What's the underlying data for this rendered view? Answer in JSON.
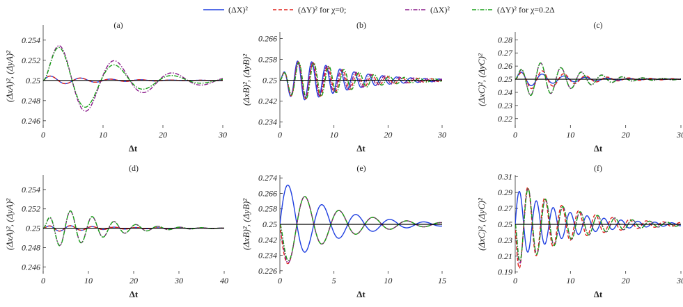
{
  "legend": {
    "items": [
      {
        "label": "(ΔX)²",
        "color": "#1f3fe0",
        "dash": "solid"
      },
      {
        "label": "(ΔY)²  for  χ=0;",
        "color": "#e0201a",
        "dash": "dash"
      },
      {
        "label": "(ΔX)²",
        "color": "#8a1a8a",
        "dash": "dashdot"
      },
      {
        "label": "(ΔY)²  for  χ=0.2Δ",
        "color": "#19a019",
        "dash": "dashdot"
      }
    ]
  },
  "chart_data": [
    {
      "panel": "(a)",
      "type": "line",
      "xlabel": "Δt",
      "ylabel": "(ΔxA)², (ΔyA)²",
      "xlim": [
        0,
        30
      ],
      "ylim": [
        0.2453,
        0.2555
      ],
      "xticks": [
        0,
        10,
        20,
        30
      ],
      "yticks": [
        0.246,
        0.248,
        0.25,
        0.252,
        0.254
      ],
      "yticklabels": [
        "0.246",
        "0.248",
        "0.25",
        "0.252",
        "0.254"
      ],
      "series": [
        {
          "key": "X0",
          "amp": 0.0005,
          "omega": 1.25,
          "decay": 0.12,
          "delay": 0.2
        },
        {
          "key": "Y0",
          "amp": 0.0005,
          "omega": 1.25,
          "decay": 0.12,
          "delay": 0.2
        },
        {
          "key": "X2",
          "amp": 0.0065,
          "omega": 0.65,
          "decay": 0.1,
          "delay": 2.2
        },
        {
          "key": "Y2",
          "amp": 0.0065,
          "omega": 0.65,
          "decay": 0.12,
          "delay": 2.2
        }
      ]
    },
    {
      "panel": "(b)",
      "type": "line",
      "xlabel": "Δt",
      "ylabel": "(ΔxB)², (ΔyB)²",
      "xlim": [
        0,
        30
      ],
      "ylim": [
        0.2318,
        0.2685
      ],
      "xticks": [
        0,
        10,
        20,
        30
      ],
      "yticks": [
        0.234,
        0.242,
        0.25,
        0.258,
        0.266
      ],
      "yticklabels": [
        "0.234",
        "0.242",
        "0.25",
        "0.258",
        "0.266"
      ],
      "series": [
        {
          "key": "X0",
          "amp": 0.017,
          "omega": 2.4,
          "decay": 0.12,
          "delay": 3.2
        },
        {
          "key": "Y0",
          "amp": 0.017,
          "omega": 2.3,
          "decay": 0.12,
          "delay": 3.5
        },
        {
          "key": "X2",
          "amp": 0.017,
          "omega": 2.35,
          "decay": 0.12,
          "delay": 3.8
        },
        {
          "key": "Y2",
          "amp": 0.018,
          "omega": 2.25,
          "decay": 0.12,
          "delay": 4.1
        }
      ]
    },
    {
      "panel": "(c)",
      "type": "line",
      "xlabel": "Δt",
      "ylabel": "(ΔxC)², (ΔyC)²",
      "xlim": [
        0,
        30
      ],
      "ylim": [
        0.213,
        0.286
      ],
      "xticks": [
        0,
        10,
        20,
        30
      ],
      "yticks": [
        0.22,
        0.23,
        0.24,
        0.25,
        0.26,
        0.27,
        0.28
      ],
      "yticklabels": [
        "0.22",
        "0.23",
        "0.24",
        "0.25",
        "0.26",
        "0.27",
        "0.28"
      ],
      "series": [
        {
          "key": "X0",
          "amp": 0.007,
          "omega": 1.6,
          "decay": 0.12,
          "delay": 0.5
        },
        {
          "key": "Y0",
          "amp": 0.012,
          "omega": 1.6,
          "decay": 0.12,
          "delay": 1.6
        },
        {
          "key": "X2",
          "amp": 0.035,
          "omega": 1.7,
          "decay": 0.15,
          "delay": 3.8
        },
        {
          "key": "Y2",
          "amp": 0.033,
          "omega": 1.7,
          "decay": 0.15,
          "delay": 3.3
        }
      ]
    },
    {
      "panel": "(d)",
      "type": "line",
      "xlabel": "Δt",
      "ylabel": "(ΔxA)², (ΔyA)²",
      "xlim": [
        0,
        40
      ],
      "ylim": [
        0.2453,
        0.2555
      ],
      "xticks": [
        0,
        10,
        20,
        30,
        40
      ],
      "yticks": [
        0.246,
        0.248,
        0.25,
        0.252,
        0.254
      ],
      "yticklabels": [
        "0.246",
        "0.248",
        "0.25",
        "0.252",
        "0.254"
      ],
      "series": [
        {
          "key": "X0",
          "amp": 0.00045,
          "omega": 1.3,
          "decay": 0.09,
          "delay": 1.5
        },
        {
          "key": "Y0",
          "amp": 0.00045,
          "omega": 1.3,
          "decay": 0.09,
          "delay": 1.5
        },
        {
          "key": "X2",
          "amp": 0.0055,
          "omega": 1.3,
          "decay": 0.13,
          "delay": 5.0
        },
        {
          "key": "Y2",
          "amp": 0.0055,
          "omega": 1.3,
          "decay": 0.13,
          "delay": 4.8
        }
      ]
    },
    {
      "panel": "(e)",
      "type": "line",
      "xlabel": "Δt",
      "ylabel": "(ΔxB)², (ΔyB)²",
      "xlim": [
        0,
        15
      ],
      "ylim": [
        0.2245,
        0.2755
      ],
      "xticks": [
        0,
        5,
        10,
        15
      ],
      "yticks": [
        0.226,
        0.234,
        0.242,
        0.25,
        0.258,
        0.266,
        0.274
      ],
      "yticklabels": [
        "0.226",
        "0.234",
        "0.242",
        "0.25",
        "0.258",
        "0.266",
        "0.274"
      ],
      "series": [
        {
          "key": "X0",
          "amp": 0.024,
          "omega": 2.0,
          "decay": 0.22,
          "delay": 0.0
        },
        {
          "key": "Y0",
          "amp": -0.024,
          "omega": 2.0,
          "decay": 0.22,
          "delay": 0.0
        },
        {
          "key": "X2",
          "amp": -0.024,
          "omega": 2.0,
          "decay": 0.22,
          "delay": 0.2
        },
        {
          "key": "Y2",
          "amp": -0.024,
          "omega": 2.0,
          "decay": 0.22,
          "delay": 0.3
        }
      ]
    },
    {
      "panel": "(f)",
      "type": "line",
      "xlabel": "Δt",
      "ylabel": "(ΔxC)², (ΔyC)²",
      "xlim": [
        0,
        30
      ],
      "ylim": [
        0.188,
        0.312
      ],
      "xticks": [
        0,
        10,
        20,
        30
      ],
      "yticks": [
        0.19,
        0.21,
        0.23,
        0.25,
        0.27,
        0.29,
        0.31
      ],
      "yticklabels": [
        "0.19",
        "0.21",
        "0.23",
        "0.25",
        "0.27",
        "0.29",
        "0.31"
      ],
      "series": [
        {
          "key": "X0",
          "amp": 0.045,
          "omega": 2.05,
          "decay": 0.11,
          "delay": 0.0
        },
        {
          "key": "Y0",
          "amp": -0.06,
          "omega": 2.05,
          "decay": 0.11,
          "delay": 0.0
        },
        {
          "key": "X2",
          "amp": -0.058,
          "omega": 2.0,
          "decay": 0.11,
          "delay": 0.3
        },
        {
          "key": "Y2",
          "amp": -0.058,
          "omega": 2.0,
          "decay": 0.11,
          "delay": 0.4
        }
      ]
    }
  ]
}
